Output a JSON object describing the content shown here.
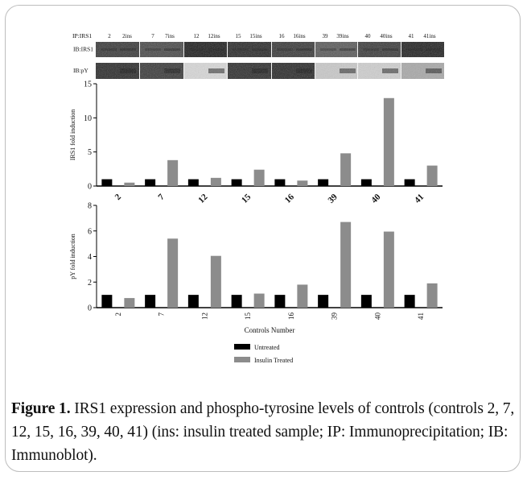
{
  "blot": {
    "ip_label": "IP:IRS1",
    "ib_labels": [
      "IB:IRS1",
      "IB:pY"
    ],
    "lanes": [
      "2",
      "2ins",
      "7",
      "7ins",
      "12",
      "12ins",
      "15",
      "15ins",
      "16",
      "16ins",
      "39",
      "39ins",
      "40",
      "40ins",
      "41",
      "41ins"
    ]
  },
  "legend": {
    "items": [
      {
        "label": "Untreated",
        "color": "#000000"
      },
      {
        "label": "Insulin Treated",
        "color": "#8c8c8c"
      }
    ]
  },
  "caption": {
    "bold": "Figure 1.",
    "text": " IRS1 expression and phospho-tyrosine levels of controls (controls 2, 7, 12, 15, 16, 39, 40, 41) (ins: insulin treated sample; IP: Immunoprecipitation; IB: Immunoblot)."
  },
  "chart_data": [
    {
      "type": "bar",
      "ylabel": "IRS1 fold induction",
      "xlabel": "",
      "categories": [
        "2",
        "7",
        "12",
        "15",
        "16",
        "39",
        "40",
        "41"
      ],
      "ylim": [
        0,
        15
      ],
      "yticks": [
        0,
        5,
        10,
        15
      ],
      "series": [
        {
          "name": "Untreated",
          "color": "#000000",
          "values": [
            1,
            1,
            1,
            1,
            1,
            1,
            1,
            1
          ]
        },
        {
          "name": "Insulin Treated",
          "color": "#8c8c8c",
          "values": [
            0.5,
            3.8,
            1.2,
            2.4,
            0.8,
            4.8,
            12.9,
            3.0
          ]
        }
      ]
    },
    {
      "type": "bar",
      "ylabel": "pY fold induction",
      "xlabel": "Controls Number",
      "categories": [
        "2",
        "7",
        "12",
        "15",
        "16",
        "39",
        "40",
        "41"
      ],
      "ylim": [
        0,
        8
      ],
      "yticks": [
        0,
        2,
        4,
        6,
        8
      ],
      "series": [
        {
          "name": "Untreated",
          "color": "#000000",
          "values": [
            1,
            1,
            1,
            1,
            1,
            1,
            1,
            1
          ]
        },
        {
          "name": "Insulin Treated",
          "color": "#8c8c8c",
          "values": [
            0.75,
            5.4,
            4.05,
            1.1,
            1.8,
            6.7,
            5.95,
            1.9
          ]
        }
      ]
    }
  ]
}
